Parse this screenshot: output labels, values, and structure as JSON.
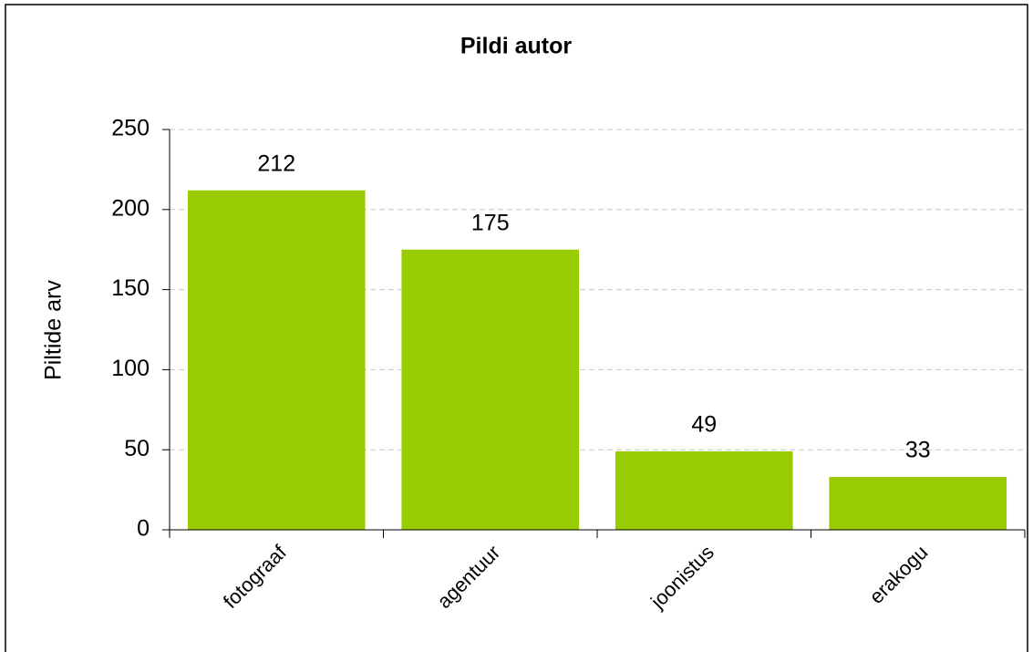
{
  "chart_data": {
    "type": "bar",
    "title": "Pildi autor",
    "y_label": "Piltide arv",
    "categories": [
      "fotograaf",
      "agentuur",
      "joonistus",
      "erakogu"
    ],
    "values": [
      212,
      175,
      49,
      33
    ],
    "color": "#99cc00",
    "ylim": [
      0,
      250
    ],
    "yticks": [
      0,
      50,
      100,
      150,
      200,
      250
    ],
    "grid": true
  }
}
